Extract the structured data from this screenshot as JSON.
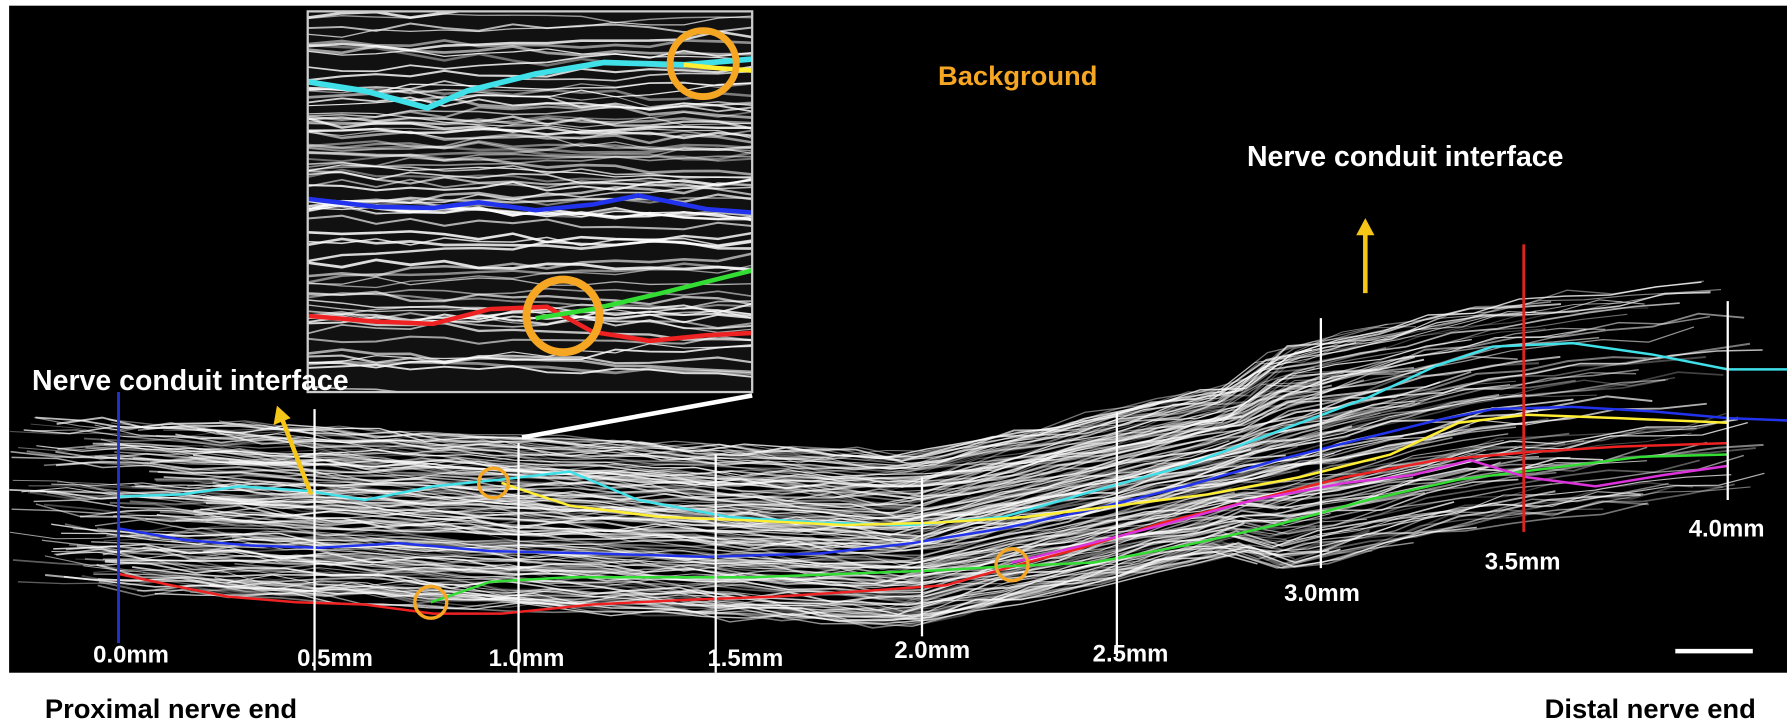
{
  "labels": {
    "background": "Background",
    "interface_top": "Nerve conduit interface",
    "interface_left": "Nerve conduit interface"
  },
  "distances": [
    "0.0mm",
    "0.5mm",
    "1.0mm",
    "1.5mm",
    "2.0mm",
    "2.5mm",
    "3.0mm",
    "3.5mm",
    "4.0mm"
  ],
  "ends": {
    "proximal": "Proximal nerve end",
    "distal": "Distal nerve end"
  }
}
